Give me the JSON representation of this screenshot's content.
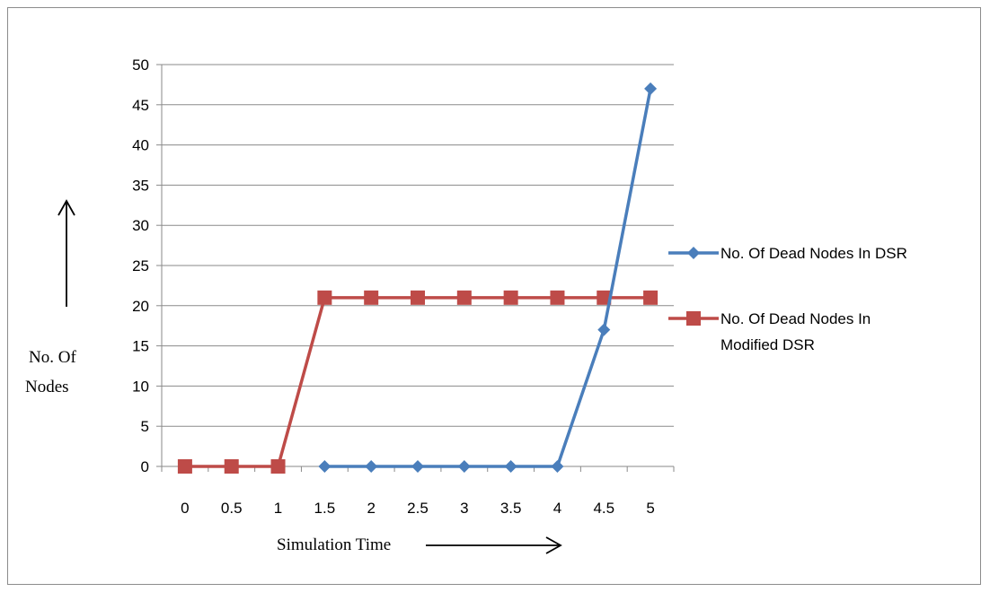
{
  "chart_data": {
    "type": "line",
    "title": "",
    "xlabel": "Simulation Time",
    "ylabel_lines": [
      "No. Of",
      "Nodes"
    ],
    "categories": [
      "0",
      "0.5",
      "1",
      "1.5",
      "2",
      "2.5",
      "3",
      "3.5",
      "4",
      "4.5",
      "5"
    ],
    "ylim": [
      0,
      50
    ],
    "yticks": [
      0,
      5,
      10,
      15,
      20,
      25,
      30,
      35,
      40,
      45,
      50
    ],
    "grid": true,
    "legend_position": "right",
    "series": [
      {
        "name": "No. Of Dead Nodes In DSR",
        "legend_lines": [
          "No. Of Dead Nodes In DSR"
        ],
        "color": "#4a7ebb",
        "marker": "diamond",
        "x": [
          0,
          0.5,
          1,
          1.5,
          2,
          2.5,
          3,
          3.5,
          4,
          4.5,
          5
        ],
        "values": [
          null,
          null,
          null,
          0,
          0,
          0,
          0,
          0,
          0,
          17,
          47
        ]
      },
      {
        "name": "No. Of Dead Nodes In Modified DSR",
        "legend_lines": [
          "No. Of Dead Nodes In",
          "Modified DSR"
        ],
        "color": "#be4b48",
        "marker": "square",
        "x": [
          0,
          0.5,
          1,
          1.5,
          2,
          2.5,
          3,
          3.5,
          4,
          4.5,
          5
        ],
        "values": [
          0,
          0,
          0,
          21,
          21,
          21,
          21,
          21,
          21,
          21,
          21
        ]
      }
    ]
  }
}
